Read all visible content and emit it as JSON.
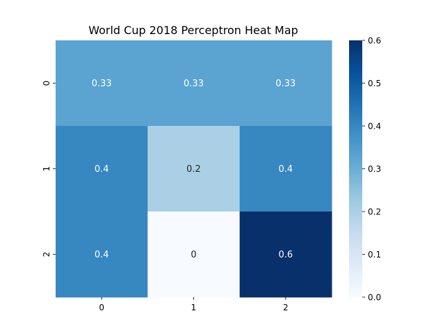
{
  "chart_data": {
    "type": "heatmap",
    "title": "World Cup 2018 Perceptron Heat Map",
    "x_categories": [
      "0",
      "1",
      "2"
    ],
    "y_categories": [
      "0",
      "1",
      "2"
    ],
    "values": [
      [
        0.33,
        0.33,
        0.33
      ],
      [
        0.4,
        0.2,
        0.4
      ],
      [
        0.4,
        0,
        0.6
      ]
    ],
    "cell_labels": [
      [
        "0.33",
        "0.33",
        "0.33"
      ],
      [
        "0.4",
        "0.2",
        "0.4"
      ],
      [
        "0.4",
        "0",
        "0.6"
      ]
    ],
    "colorbar": {
      "range": [
        0.0,
        0.6
      ],
      "ticks": [
        0.0,
        0.1,
        0.2,
        0.3,
        0.4,
        0.5,
        0.6
      ],
      "tick_labels": [
        "0.0",
        "0.1",
        "0.2",
        "0.3",
        "0.4",
        "0.5",
        "0.6"
      ],
      "colormap": "Blues"
    },
    "xlabel": "",
    "ylabel": "",
    "grid": false,
    "colors": {
      "low": "#f7fbff",
      "high": "#08306b"
    }
  }
}
